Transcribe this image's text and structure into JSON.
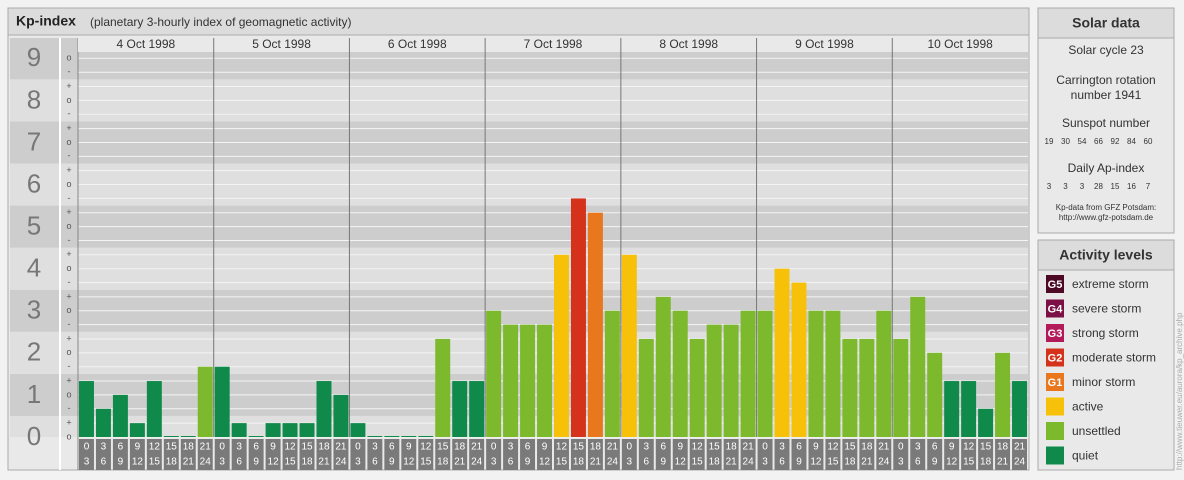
{
  "title": "Kp-index",
  "subtitle": "(planetary 3-hourly index of geomagnetic activity)",
  "chart_data": {
    "type": "bar",
    "days": [
      "4 Oct 1998",
      "5 Oct 1998",
      "6 Oct 1998",
      "7 Oct 1998",
      "8 Oct 1998",
      "9 Oct 1998",
      "10 Oct 1998"
    ],
    "slot_starts": [
      0,
      3,
      6,
      9,
      12,
      15,
      18,
      21
    ],
    "slot_ends": [
      3,
      6,
      9,
      12,
      15,
      18,
      21,
      24
    ],
    "values": [
      1.33,
      0.67,
      1,
      0.33,
      1.33,
      0,
      0,
      1.67,
      1.67,
      0.33,
      0,
      0.33,
      0.33,
      0.33,
      1.33,
      1,
      0.33,
      0,
      0,
      0,
      0,
      2.33,
      1.33,
      1.33,
      3,
      2.67,
      2.67,
      2.67,
      4.33,
      5.67,
      5.33,
      3,
      4.33,
      2.33,
      3.33,
      3,
      2.33,
      2.67,
      2.67,
      3,
      3,
      4,
      3.67,
      3,
      3,
      2.33,
      2.33,
      3,
      2.33,
      3.33,
      2,
      1.33,
      1.33,
      0.67,
      2,
      1.33
    ],
    "colors": [
      "#0f8a4b",
      "#0f8a4b",
      "#0f8a4b",
      "#0f8a4b",
      "#0f8a4b",
      "#0f8a4b",
      "#0f8a4b",
      "#7cb92c",
      "#0f8a4b",
      "#0f8a4b",
      "#0f8a4b",
      "#0f8a4b",
      "#0f8a4b",
      "#0f8a4b",
      "#0f8a4b",
      "#0f8a4b",
      "#0f8a4b",
      "#0f8a4b",
      "#0f8a4b",
      "#0f8a4b",
      "#0f8a4b",
      "#7cb92c",
      "#0f8a4b",
      "#0f8a4b",
      "#7cb92c",
      "#7cb92c",
      "#7cb92c",
      "#7cb92c",
      "#f7c10a",
      "#d5321c",
      "#e8771e",
      "#7cb92c",
      "#f7c10a",
      "#7cb92c",
      "#7cb92c",
      "#7cb92c",
      "#7cb92c",
      "#7cb92c",
      "#7cb92c",
      "#7cb92c",
      "#7cb92c",
      "#f7c10a",
      "#f7c10a",
      "#7cb92c",
      "#7cb92c",
      "#7cb92c",
      "#7cb92c",
      "#7cb92c",
      "#7cb92c",
      "#7cb92c",
      "#7cb92c",
      "#0f8a4b",
      "#0f8a4b",
      "#0f8a4b",
      "#7cb92c",
      "#0f8a4b"
    ],
    "ylim": [
      0,
      9.15
    ],
    "yticks": [
      0,
      1,
      2,
      3,
      4,
      5,
      6,
      7,
      8,
      9
    ],
    "minor_yticks": [
      {
        "value": 0,
        "label": "o"
      },
      {
        "value": 0.33,
        "label": "+"
      },
      {
        "value": 0.67,
        "label": "-"
      },
      {
        "value": 1,
        "label": "o"
      },
      {
        "value": 1.33,
        "label": "+"
      },
      {
        "value": 1.67,
        "label": "-"
      },
      {
        "value": 2,
        "label": "o"
      },
      {
        "value": 2.33,
        "label": "+"
      },
      {
        "value": 2.67,
        "label": "-"
      },
      {
        "value": 3,
        "label": "o"
      },
      {
        "value": 3.33,
        "label": "+"
      },
      {
        "value": 3.67,
        "label": "-"
      },
      {
        "value": 4,
        "label": "o"
      },
      {
        "value": 4.33,
        "label": "+"
      },
      {
        "value": 4.67,
        "label": "-"
      },
      {
        "value": 5,
        "label": "o"
      },
      {
        "value": 5.33,
        "label": "+"
      },
      {
        "value": 5.67,
        "label": "-"
      },
      {
        "value": 6,
        "label": "o"
      },
      {
        "value": 6.33,
        "label": "+"
      },
      {
        "value": 6.67,
        "label": "-"
      },
      {
        "value": 7,
        "label": "o"
      },
      {
        "value": 7.33,
        "label": "+"
      },
      {
        "value": 7.67,
        "label": "-"
      },
      {
        "value": 8,
        "label": "o"
      },
      {
        "value": 8.33,
        "label": "+"
      },
      {
        "value": 8.67,
        "label": "-"
      },
      {
        "value": 9,
        "label": "o"
      }
    ]
  },
  "solar_data": {
    "title": "Solar data",
    "cycle": "Solar cycle 23",
    "rotation_line1": "Carrington rotation",
    "rotation_line2": "number 1941",
    "sunspot_title": "Sunspot number",
    "sunspot_values": [
      19,
      30,
      54,
      66,
      92,
      84,
      60
    ],
    "ap_title": "Daily Ap-index",
    "ap_values": [
      3,
      3,
      3,
      28,
      15,
      16,
      7
    ],
    "source_line1": "Kp-data from GFZ Potsdam:",
    "source_line2": "http://www.gfz-potsdam.de"
  },
  "activity_levels": {
    "title": "Activity levels",
    "items": [
      {
        "code": "G5",
        "label": "extreme storm",
        "color": "#4d0a24"
      },
      {
        "code": "G4",
        "label": "severe storm",
        "color": "#7c0f45"
      },
      {
        "code": "G3",
        "label": "strong storm",
        "color": "#b21a5a"
      },
      {
        "code": "G2",
        "label": "moderate storm",
        "color": "#d5321c"
      },
      {
        "code": "G1",
        "label": "minor storm",
        "color": "#e8771e"
      },
      {
        "label": "active",
        "color": "#f7c10a"
      },
      {
        "label": "unsettled",
        "color": "#7cb92c"
      },
      {
        "label": "quiet",
        "color": "#0f8a4b"
      }
    ]
  },
  "side_note": "http://www.tieuwer.eu/aurora/kp_archive.php"
}
